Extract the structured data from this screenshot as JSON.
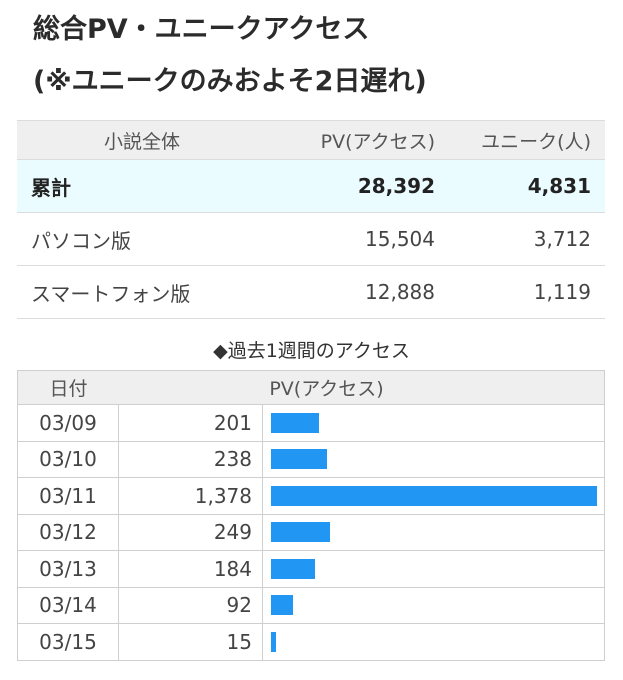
{
  "title_line1": "総合PV・ユニークアクセス",
  "title_line2": "(※ユニークのみおよそ2日遅れ)",
  "summary": {
    "headers": [
      "小説全体",
      "PV(アクセス)",
      "ユニーク(人)"
    ],
    "rows": [
      {
        "label": "累計",
        "pv": "28,392",
        "unique": "4,831"
      },
      {
        "label": "パソコン版",
        "pv": "15,504",
        "unique": "3,712"
      },
      {
        "label": "スマートフォン版",
        "pv": "12,888",
        "unique": "1,119"
      }
    ]
  },
  "weekly": {
    "title": "◆過去1週間のアクセス",
    "headers": [
      "日付",
      "PV(アクセス)"
    ],
    "bar_color": "#2196f3",
    "max_value": 1378,
    "rows": [
      {
        "date": "03/09",
        "pv": "201",
        "value": 201
      },
      {
        "date": "03/10",
        "pv": "238",
        "value": 238
      },
      {
        "date": "03/11",
        "pv": "1,378",
        "value": 1378
      },
      {
        "date": "03/12",
        "pv": "249",
        "value": 249
      },
      {
        "date": "03/13",
        "pv": "184",
        "value": 184
      },
      {
        "date": "03/14",
        "pv": "92",
        "value": 92
      },
      {
        "date": "03/15",
        "pv": "15",
        "value": 15
      }
    ]
  }
}
